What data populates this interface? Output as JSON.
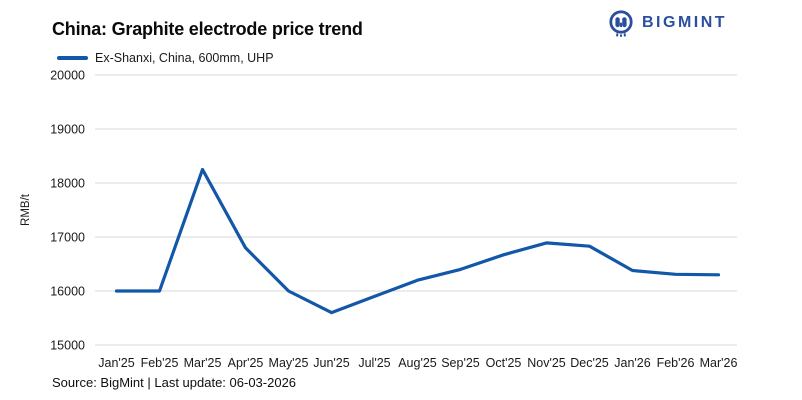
{
  "header": {
    "title": "China: Graphite electrode price trend"
  },
  "logo": {
    "text": "BIGMINT",
    "color": "#2b4f9e"
  },
  "legend": {
    "label": "Ex-Shanxi, China, 600mm, UHP",
    "line_color": "#1257a8"
  },
  "chart_data": {
    "type": "line",
    "title": "China: Graphite electrode price trend",
    "categories": [
      "Jan'25",
      "Feb'25",
      "Mar'25",
      "Apr'25",
      "May'25",
      "Jun'25",
      "Jul'25",
      "Aug'25",
      "Sep'25",
      "Oct'25",
      "Nov'25",
      "Dec'25",
      "Jan'26",
      "Feb'26",
      "Mar'26"
    ],
    "series": [
      {
        "name": "Ex-Shanxi, China, 600mm, UHP",
        "color": "#1257a8",
        "values": [
          16000,
          16000,
          18250,
          16800,
          16000,
          15600,
          15900,
          16200,
          16400,
          16670,
          16890,
          16830,
          16380,
          16310,
          16300
        ]
      }
    ],
    "xlabel": "",
    "ylabel": "RMB/t",
    "ylim": [
      15000,
      20000
    ],
    "ytick_interval": 1000,
    "yticks": [
      15000,
      16000,
      17000,
      18000,
      19000,
      20000
    ],
    "grid": "horizontal",
    "gridline_color": "#d8d8d8",
    "legend_position": "top-left"
  },
  "footer": {
    "source": "Source: BigMint | Last update: 06-03-2026"
  }
}
